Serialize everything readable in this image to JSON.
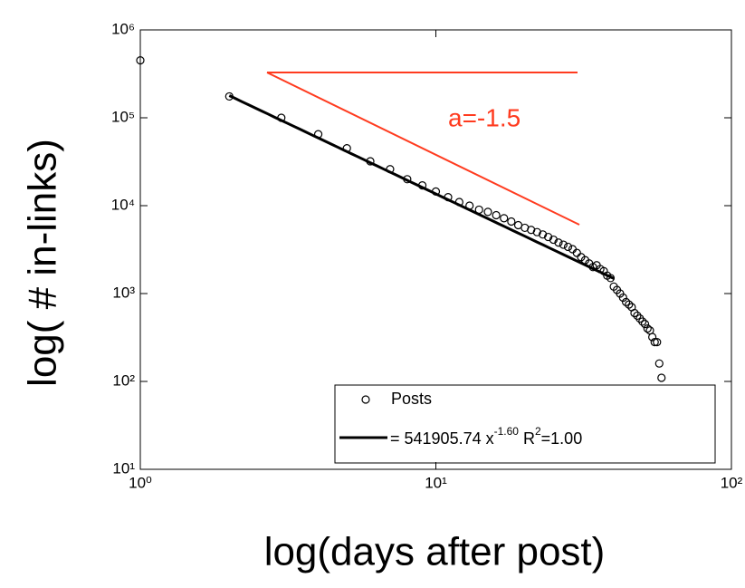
{
  "chart_data": {
    "type": "scatter",
    "log_scale": true,
    "x_label": "log(days after post)",
    "y_label": "log( # in-links)",
    "xlim": [
      1,
      100
    ],
    "ylim": [
      10,
      1000000
    ],
    "xticks": [
      {
        "value": 1,
        "label": "10⁰"
      },
      {
        "value": 10,
        "label": "10¹"
      },
      {
        "value": 100,
        "label": "10²"
      }
    ],
    "yticks": [
      {
        "value": 10,
        "label": "10¹"
      },
      {
        "value": 100,
        "label": "10²"
      },
      {
        "value": 1000,
        "label": "10³"
      },
      {
        "value": 10000,
        "label": "10⁴"
      },
      {
        "value": 100000,
        "label": "10⁵"
      },
      {
        "value": 1000000,
        "label": "10⁶"
      }
    ],
    "series": [
      {
        "name": "Posts",
        "color": "#000000",
        "x": [
          1,
          2,
          3,
          4,
          5,
          6,
          7,
          8,
          9,
          10,
          11,
          12,
          13,
          14,
          15,
          16,
          17,
          18,
          19,
          20,
          21,
          22,
          23,
          24,
          25,
          26,
          27,
          28,
          29,
          30,
          31,
          32,
          33,
          34,
          35,
          36,
          37,
          38,
          39,
          40,
          41,
          42,
          43,
          44,
          45,
          46,
          47,
          48,
          49,
          50,
          51,
          52,
          53,
          54,
          55,
          56,
          57,
          58
        ],
        "values": [
          450000,
          175000,
          100000,
          65000,
          45000,
          32000,
          26000,
          20000,
          17000,
          14500,
          12500,
          11000,
          10000,
          9000,
          8500,
          7800,
          7200,
          6600,
          6000,
          5600,
          5300,
          5000,
          4700,
          4400,
          4100,
          3800,
          3600,
          3400,
          3200,
          2900,
          2600,
          2400,
          2200,
          2000,
          2100,
          1900,
          1800,
          1600,
          1500,
          1200,
          1100,
          1000,
          900,
          800,
          750,
          700,
          600,
          560,
          520,
          480,
          450,
          400,
          380,
          320,
          280,
          280,
          160,
          110
        ]
      }
    ],
    "fit": {
      "coefficient": 541905.74,
      "exponent": -1.6,
      "x_range": [
        2,
        40
      ],
      "color": "#000000",
      "label_parts": [
        "= 541905.74 x",
        "-1.60",
        " R",
        "2",
        "=1.00"
      ]
    },
    "annotation": {
      "text": "a=-1.5",
      "color": "#ff3b1f"
    }
  }
}
